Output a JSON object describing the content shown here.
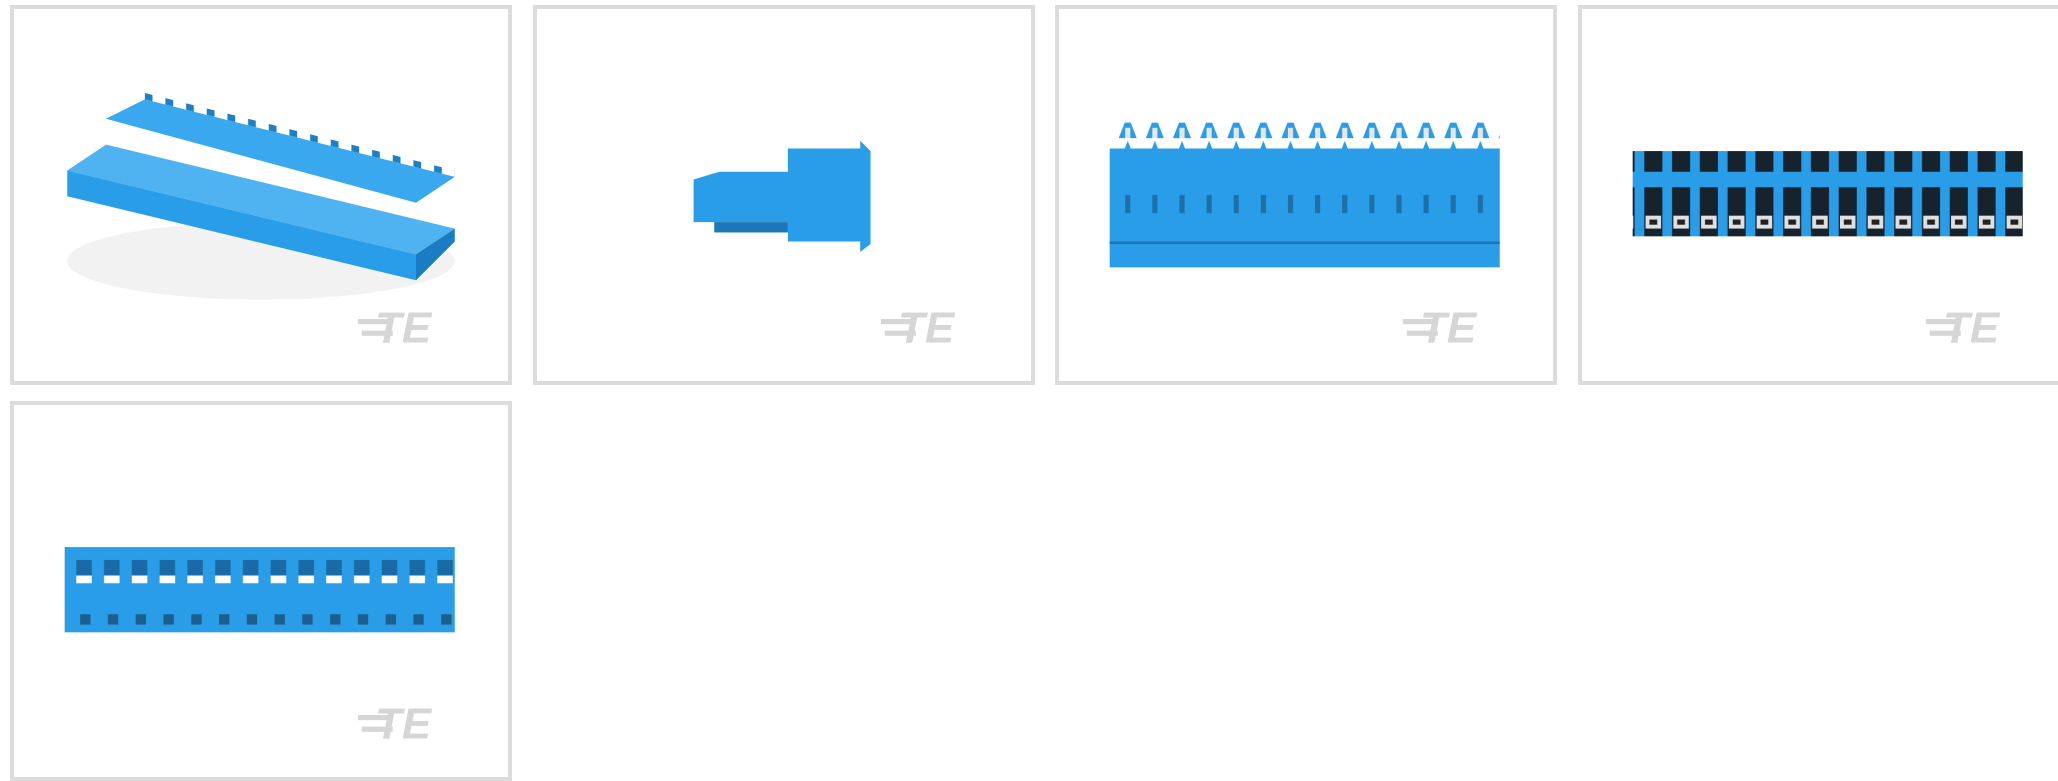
{
  "thumbnails": [
    {
      "logo": "TE"
    },
    {
      "logo": "TE"
    },
    {
      "logo": "TE"
    },
    {
      "logo": "TE"
    },
    {
      "logo": "TE"
    }
  ]
}
